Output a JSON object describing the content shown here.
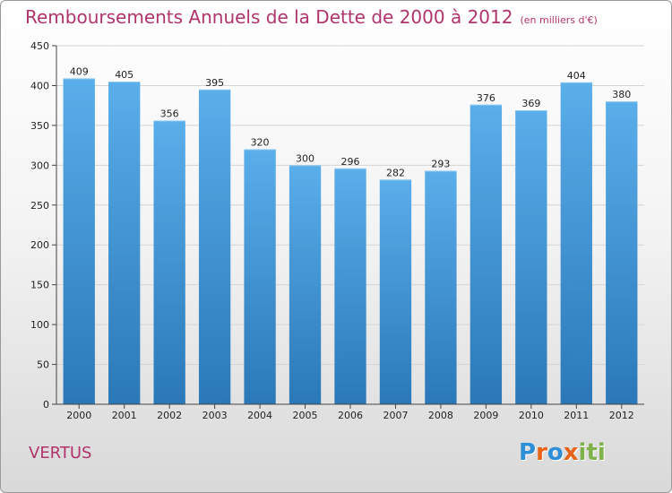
{
  "header": {
    "title": "Remboursements Annuels de la Dette de 2000 à 2012",
    "unit": "(en milliers d'€)"
  },
  "footer": {
    "place": "VERTUS",
    "logo": [
      "P",
      "r",
      "o",
      "x",
      "i",
      "t",
      "i"
    ]
  },
  "colors": {
    "title": "#b0346c",
    "bar_top": "#5aaeea",
    "bar_bottom": "#2a78b8",
    "logo": [
      "#2f8fd6",
      "#e8641a",
      "#2f8fd6",
      "#e8641a",
      "#7fb24a",
      "#7fb24a",
      "#7fb24a"
    ]
  },
  "chart_data": {
    "type": "bar",
    "title": "Remboursements Annuels de la Dette de 2000 à 2012",
    "subtitle": "(en milliers d'€)",
    "categories": [
      "2000",
      "2001",
      "2002",
      "2003",
      "2004",
      "2005",
      "2006",
      "2007",
      "2008",
      "2009",
      "2010",
      "2011",
      "2012"
    ],
    "values": [
      409,
      405,
      356,
      395,
      320,
      300,
      296,
      282,
      293,
      376,
      369,
      404,
      380
    ],
    "ylim": [
      0,
      450
    ],
    "yticks": [
      0,
      50,
      100,
      150,
      200,
      250,
      300,
      350,
      400,
      450
    ],
    "grid": "horizontal",
    "data_labels": true
  }
}
